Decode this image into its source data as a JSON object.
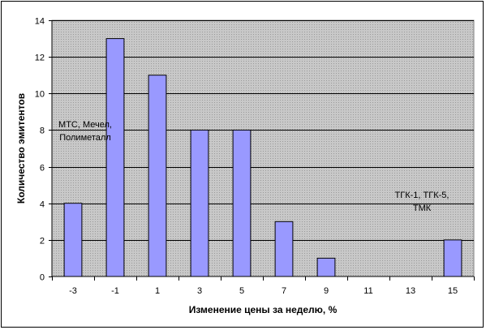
{
  "chart_data": {
    "type": "bar",
    "categories": [
      "-3",
      "-1",
      "1",
      "3",
      "5",
      "7",
      "9",
      "11",
      "13",
      "15"
    ],
    "values": [
      4,
      13,
      11,
      8,
      8,
      3,
      1,
      0,
      0,
      2
    ],
    "title": "",
    "xlabel": "Изменение цены за неделю, %",
    "ylabel": "Количество эмитентов",
    "ylim": [
      0,
      14
    ],
    "yticks": [
      0,
      2,
      4,
      6,
      8,
      10,
      12,
      14
    ],
    "grid": true,
    "legend": "none",
    "colors": {
      "plot_background": "#c0c0c0",
      "bar_fill": "#9999ff",
      "bar_stroke": "#000000",
      "grid": "#000000"
    },
    "annotations": [
      {
        "lines": [
          "МТС, Мечел,",
          "Полиметалл"
        ]
      },
      {
        "lines": [
          "ТГК-1, ТГК-5,",
          "ТМК"
        ]
      }
    ]
  }
}
